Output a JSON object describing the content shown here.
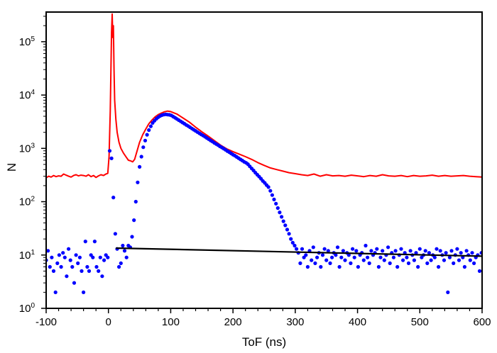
{
  "chart_data": {
    "type": "scatter",
    "title": "",
    "xlabel": "ToF (ns)",
    "ylabel": "N",
    "xlim": [
      -100,
      600
    ],
    "ylim": [
      1,
      360000
    ],
    "yscale": "log",
    "grid": false,
    "x_ticks": [
      "-100",
      "0",
      "100",
      "200",
      "300",
      "400",
      "500",
      "600"
    ],
    "y_ticks": [
      {
        "base": "10",
        "exp": "0"
      },
      {
        "base": "10",
        "exp": "1"
      },
      {
        "base": "10",
        "exp": "2"
      },
      {
        "base": "10",
        "exp": "3"
      },
      {
        "base": "10",
        "exp": "4"
      },
      {
        "base": "10",
        "exp": "5"
      }
    ],
    "series": [
      {
        "name": "red line",
        "kind": "line",
        "color": "#ff0000",
        "points": [
          [
            -100,
            280
          ],
          [
            -96,
            300
          ],
          [
            -92,
            290
          ],
          [
            -88,
            310
          ],
          [
            -84,
            295
          ],
          [
            -80,
            305
          ],
          [
            -76,
            300
          ],
          [
            -72,
            330
          ],
          [
            -68,
            315
          ],
          [
            -64,
            300
          ],
          [
            -60,
            290
          ],
          [
            -56,
            310
          ],
          [
            -52,
            320
          ],
          [
            -48,
            305
          ],
          [
            -44,
            315
          ],
          [
            -40,
            310
          ],
          [
            -36,
            300
          ],
          [
            -32,
            320
          ],
          [
            -28,
            295
          ],
          [
            -24,
            310
          ],
          [
            -20,
            285
          ],
          [
            -16,
            305
          ],
          [
            -12,
            320
          ],
          [
            -8,
            310
          ],
          [
            -4,
            330
          ],
          [
            -1,
            340
          ],
          [
            1,
            700
          ],
          [
            3,
            5000
          ],
          [
            5,
            150000
          ],
          [
            6,
            330000
          ],
          [
            7,
            120000
          ],
          [
            8,
            200000
          ],
          [
            9,
            30000
          ],
          [
            10,
            8000
          ],
          [
            12,
            3500
          ],
          [
            14,
            2000
          ],
          [
            17,
            1300
          ],
          [
            20,
            1000
          ],
          [
            24,
            820
          ],
          [
            28,
            700
          ],
          [
            32,
            600
          ],
          [
            36,
            580
          ],
          [
            39,
            560
          ],
          [
            42,
            620
          ],
          [
            46,
            900
          ],
          [
            50,
            1300
          ],
          [
            55,
            1800
          ],
          [
            60,
            2300
          ],
          [
            65,
            2900
          ],
          [
            70,
            3400
          ],
          [
            75,
            3900
          ],
          [
            80,
            4300
          ],
          [
            85,
            4600
          ],
          [
            90,
            4850
          ],
          [
            95,
            5000
          ],
          [
            100,
            4900
          ],
          [
            110,
            4400
          ],
          [
            120,
            3700
          ],
          [
            130,
            3100
          ],
          [
            140,
            2500
          ],
          [
            150,
            2050
          ],
          [
            160,
            1700
          ],
          [
            170,
            1400
          ],
          [
            180,
            1150
          ],
          [
            190,
            980
          ],
          [
            200,
            870
          ],
          [
            210,
            780
          ],
          [
            220,
            700
          ],
          [
            230,
            620
          ],
          [
            240,
            540
          ],
          [
            250,
            480
          ],
          [
            260,
            430
          ],
          [
            270,
            400
          ],
          [
            280,
            375
          ],
          [
            290,
            350
          ],
          [
            300,
            335
          ],
          [
            310,
            320
          ],
          [
            320,
            310
          ],
          [
            330,
            330
          ],
          [
            340,
            300
          ],
          [
            350,
            320
          ],
          [
            360,
            305
          ],
          [
            370,
            310
          ],
          [
            380,
            300
          ],
          [
            390,
            315
          ],
          [
            400,
            305
          ],
          [
            410,
            295
          ],
          [
            420,
            310
          ],
          [
            430,
            300
          ],
          [
            440,
            320
          ],
          [
            450,
            305
          ],
          [
            460,
            300
          ],
          [
            470,
            310
          ],
          [
            480,
            295
          ],
          [
            490,
            310
          ],
          [
            500,
            300
          ],
          [
            510,
            305
          ],
          [
            520,
            315
          ],
          [
            530,
            300
          ],
          [
            540,
            310
          ],
          [
            550,
            300
          ],
          [
            560,
            305
          ],
          [
            570,
            310
          ],
          [
            580,
            300
          ],
          [
            590,
            295
          ],
          [
            600,
            290
          ]
        ]
      },
      {
        "name": "blue points",
        "kind": "scatter",
        "color": "#0000ff",
        "x_start": -100,
        "x_step": 3,
        "y": [
          8,
          12,
          6,
          9,
          5,
          2,
          7,
          10,
          6,
          11,
          9,
          4,
          13,
          8,
          6,
          3,
          10,
          7,
          9,
          5,
          2,
          18,
          6,
          5,
          10,
          9,
          18,
          6,
          5,
          9,
          4,
          8,
          10,
          9,
          900,
          650,
          120,
          25,
          13,
          6,
          7,
          15,
          12,
          9,
          15,
          14,
          22,
          45,
          100,
          230,
          450,
          700,
          1050,
          1400,
          1800,
          2200,
          2600,
          3000,
          3300,
          3600,
          3850,
          4050,
          4200,
          4300,
          4350,
          4300,
          4250,
          4150,
          3940,
          3750,
          3560,
          3380,
          3210,
          3050,
          2900,
          2750,
          2620,
          2490,
          2360,
          2240,
          2130,
          2020,
          1920,
          1830,
          1740,
          1650,
          1570,
          1490,
          1410,
          1340,
          1270,
          1210,
          1150,
          1090,
          1040,
          990,
          940,
          890,
          850,
          805,
          765,
          730,
          690,
          655,
          620,
          590,
          560,
          535,
          505,
          460,
          420,
          385,
          350,
          320,
          295,
          270,
          245,
          225,
          205,
          188,
          160,
          133,
          110,
          92,
          76,
          63,
          52,
          43,
          36,
          30,
          25,
          20,
          17,
          15,
          13,
          11,
          7,
          13,
          9,
          10,
          6,
          12,
          8,
          14,
          7,
          9,
          11,
          6,
          10,
          13,
          8,
          12,
          7,
          9,
          11,
          10,
          14,
          6,
          9,
          12,
          8,
          11,
          10,
          7,
          13,
          9,
          12,
          6,
          10,
          11,
          8,
          15,
          9,
          7,
          12,
          10,
          11,
          13,
          6,
          9,
          12,
          8,
          10,
          14,
          7,
          11,
          9,
          12,
          6,
          10,
          13,
          8,
          11,
          9,
          7,
          12,
          10,
          8,
          11,
          6,
          13,
          9,
          10,
          12,
          7,
          11,
          8,
          10,
          9,
          13,
          6,
          12,
          10,
          8,
          11,
          2,
          9,
          12,
          7,
          10,
          13,
          8,
          11,
          9,
          6,
          12,
          10,
          8,
          11,
          7,
          9,
          10,
          5,
          11
        ]
      },
      {
        "name": "black fit line",
        "kind": "line",
        "color": "#000000",
        "points": [
          [
            12,
            13.5
          ],
          [
            600,
            9.5
          ]
        ]
      }
    ]
  }
}
